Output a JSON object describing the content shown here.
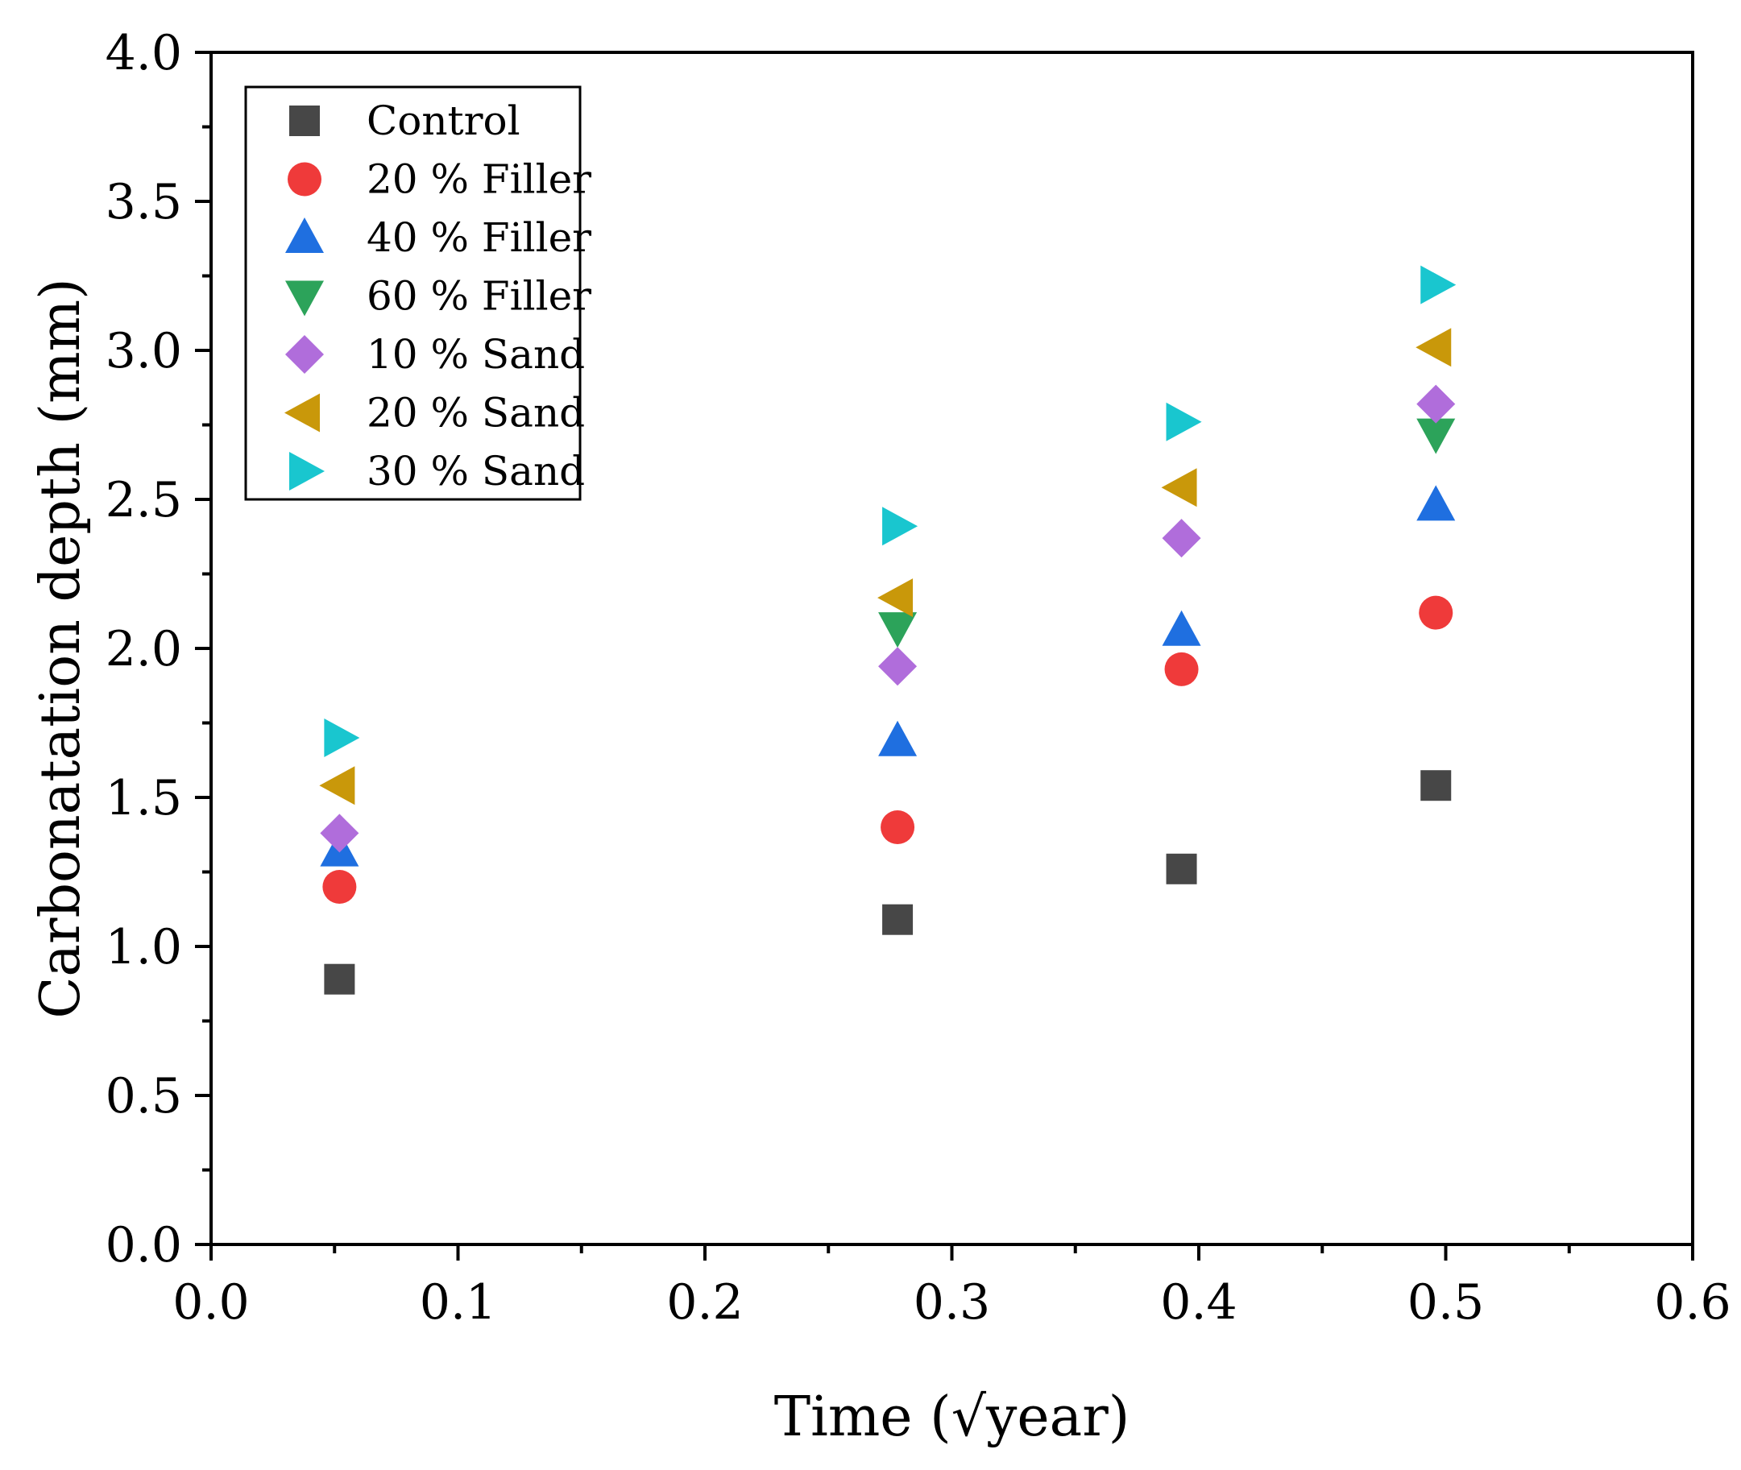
{
  "chart_data": {
    "type": "scatter",
    "title": "",
    "xlabel": "Time (√year)",
    "ylabel": "Carbonatation depth (mm)",
    "xlim": [
      0.0,
      0.6
    ],
    "ylim": [
      0.0,
      4.0
    ],
    "x_ticks": [
      "0.0",
      "0.1",
      "0.2",
      "0.3",
      "0.4",
      "0.5",
      "0.6"
    ],
    "y_ticks": [
      "0.0",
      "0.5",
      "1.0",
      "1.5",
      "2.0",
      "2.5",
      "3.0",
      "3.5",
      "4.0"
    ],
    "grid": false,
    "legend_position": "top-left",
    "series": [
      {
        "name": "Control",
        "marker": "square",
        "color": "#474747",
        "x": [
          0.052,
          0.278,
          0.393,
          0.496
        ],
        "y": [
          0.89,
          1.09,
          1.26,
          1.54
        ]
      },
      {
        "name": "20 % Filler",
        "marker": "circle",
        "color": "#EF3A3A",
        "x": [
          0.052,
          0.278,
          0.393,
          0.496
        ],
        "y": [
          1.2,
          1.4,
          1.93,
          2.12
        ]
      },
      {
        "name": "40 % Filler",
        "marker": "triangle-up",
        "color": "#1F6FE0",
        "x": [
          0.052,
          0.278,
          0.393,
          0.496
        ],
        "y": [
          1.32,
          1.69,
          2.06,
          2.48
        ]
      },
      {
        "name": "60 % Filler",
        "marker": "triangle-down",
        "color": "#2CA35A",
        "x": [
          0.278,
          0.496
        ],
        "y": [
          2.07,
          2.72
        ]
      },
      {
        "name": "10 % Sand",
        "marker": "diamond",
        "color": "#B06DDB",
        "x": [
          0.052,
          0.278,
          0.393,
          0.496
        ],
        "y": [
          1.38,
          1.94,
          2.37,
          2.82
        ]
      },
      {
        "name": "20 % Sand",
        "marker": "triangle-left",
        "color": "#C9980A",
        "x": [
          0.052,
          0.278,
          0.393,
          0.496
        ],
        "y": [
          1.54,
          2.17,
          2.54,
          3.01
        ]
      },
      {
        "name": "30 % Sand",
        "marker": "triangle-right",
        "color": "#19C6CF",
        "x": [
          0.052,
          0.278,
          0.393,
          0.496
        ],
        "y": [
          1.7,
          2.41,
          2.76,
          3.22
        ]
      }
    ]
  }
}
